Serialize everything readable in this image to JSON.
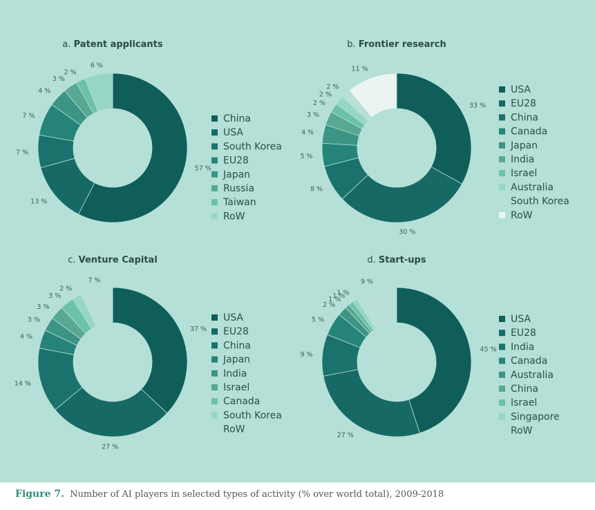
{
  "caption": {
    "figure": "Figure 7.",
    "text": "Number of AI players in selected types of activity (% over world total), 2009-2018"
  },
  "colors": {
    "background": "#b5e0d7",
    "palette": [
      "#0f5e5a",
      "#176966",
      "#1b726c",
      "#25837a",
      "#3c9485",
      "#58a894",
      "#6cc1a9",
      "#96d6c4",
      "#b8e0d8",
      "#eaf5f2"
    ]
  },
  "chart_data": [
    {
      "type": "pie",
      "panel": "a",
      "title_prefix": "a.",
      "title": "Patent applicants",
      "legend_position": "right",
      "slices": [
        {
          "name": "China",
          "value": 57,
          "label": "57 %",
          "color": "#0f5e5a"
        },
        {
          "name": "USA",
          "value": 13,
          "label": "13 %",
          "color": "#176966"
        },
        {
          "name": "South Korea",
          "value": 7,
          "label": "7 %",
          "color": "#1b726c"
        },
        {
          "name": "EU28",
          "value": 7,
          "label": "7 %",
          "color": "#25837a"
        },
        {
          "name": "Japan",
          "value": 4,
          "label": "4 %",
          "color": "#3c9485"
        },
        {
          "name": "Russia",
          "value": 3,
          "label": "3 %",
          "color": "#58a894"
        },
        {
          "name": "Taiwan",
          "value": 2,
          "label": "2 %",
          "color": "#6cc1a9"
        },
        {
          "name": "RoW",
          "value": 6,
          "label": "6 %",
          "color": "#96d6c4"
        }
      ]
    },
    {
      "type": "pie",
      "panel": "b",
      "title_prefix": "b.",
      "title": "Frontier research",
      "legend_position": "right",
      "slices": [
        {
          "name": "USA",
          "value": 33,
          "label": "33 %",
          "color": "#0f5e5a"
        },
        {
          "name": "EU28",
          "value": 30,
          "label": "30 %",
          "color": "#176966"
        },
        {
          "name": "China",
          "value": 8,
          "label": "8 %",
          "color": "#1b726c"
        },
        {
          "name": "Canada",
          "value": 5,
          "label": "5 %",
          "color": "#25837a"
        },
        {
          "name": "Japan",
          "value": 4,
          "label": "4 %",
          "color": "#3c9485"
        },
        {
          "name": "India",
          "value": 3,
          "label": "3 %",
          "color": "#58a894"
        },
        {
          "name": "Israel",
          "value": 2,
          "label": "2 %",
          "color": "#6cc1a9"
        },
        {
          "name": "Australia",
          "value": 2,
          "label": "2 %",
          "color": "#96d6c4"
        },
        {
          "name": "South Korea",
          "value": 2,
          "label": "2 %",
          "color": "#b8e0d8"
        },
        {
          "name": "RoW",
          "value": 11,
          "label": "11 %",
          "color": "#eaf5f2"
        }
      ]
    },
    {
      "type": "pie",
      "panel": "c",
      "title_prefix": "c.",
      "title": "Venture Capital",
      "legend_position": "right",
      "slices": [
        {
          "name": "USA",
          "value": 37,
          "label": "37 %",
          "color": "#0f5e5a"
        },
        {
          "name": "EU28",
          "value": 27,
          "label": "27 %",
          "color": "#176966"
        },
        {
          "name": "China",
          "value": 14,
          "label": "14 %",
          "color": "#1b726c"
        },
        {
          "name": "Japan",
          "value": 4,
          "label": "4 %",
          "color": "#25837a"
        },
        {
          "name": "India",
          "value": 3,
          "label": "3 %",
          "color": "#3c9485"
        },
        {
          "name": "Israel",
          "value": 3,
          "label": "3 %",
          "color": "#58a894"
        },
        {
          "name": "Canada",
          "value": 3,
          "label": "3 %",
          "color": "#6cc1a9"
        },
        {
          "name": "South Korea",
          "value": 2,
          "label": "2 %",
          "color": "#96d6c4"
        },
        {
          "name": "RoW",
          "value": 7,
          "label": "7 %",
          "color": "#b8e0d8"
        }
      ]
    },
    {
      "type": "pie",
      "panel": "d",
      "title_prefix": "d.",
      "title": "Start-ups",
      "legend_position": "right",
      "slices": [
        {
          "name": "USA",
          "value": 45,
          "label": "45 %",
          "color": "#0f5e5a"
        },
        {
          "name": "EU28",
          "value": 27,
          "label": "27 %",
          "color": "#176966"
        },
        {
          "name": "India",
          "value": 9,
          "label": "9 %",
          "color": "#1b726c"
        },
        {
          "name": "Canada",
          "value": 5,
          "label": "5 %",
          "color": "#25837a"
        },
        {
          "name": "Australia",
          "value": 2,
          "label": "2 %",
          "color": "#3c9485"
        },
        {
          "name": "China",
          "value": 1,
          "label": "1 %",
          "color": "#58a894"
        },
        {
          "name": "Israel",
          "value": 1,
          "label": "1 %",
          "color": "#6cc1a9"
        },
        {
          "name": "Singapore",
          "value": 1,
          "label": "1 %",
          "color": "#96d6c4"
        },
        {
          "name": "RoW",
          "value": 9,
          "label": "9 %",
          "color": "#b8e0d8"
        }
      ]
    }
  ]
}
